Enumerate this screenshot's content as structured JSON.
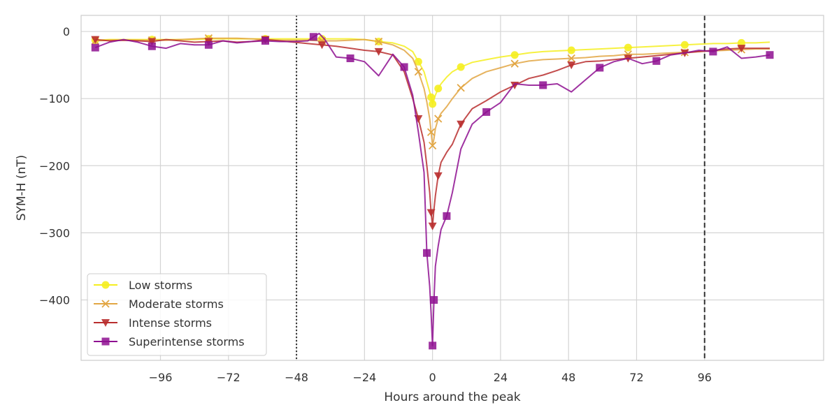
{
  "chart_data": {
    "type": "line",
    "title": "",
    "xlabel": "Hours around the peak",
    "ylabel": "SYM-H (nT)",
    "xlim": [
      -124,
      138
    ],
    "ylim": [
      -490,
      24
    ],
    "xticks": [
      -96,
      -72,
      -48,
      -24,
      0,
      24,
      48,
      72,
      96
    ],
    "yticks": [
      0,
      -100,
      -200,
      -300,
      -400
    ],
    "grid": true,
    "legend_position": "lower-left",
    "vlines": [
      {
        "x": -48,
        "style": "dotted",
        "color": "#333333"
      },
      {
        "x": 96,
        "style": "dashed",
        "color": "#333333"
      }
    ],
    "series": [
      {
        "name": "Low storms",
        "color": "#f5ee1f",
        "marker": "circle",
        "x": [
          -119,
          -114,
          -109,
          -104,
          -99,
          -94,
          -89,
          -84,
          -79,
          -74,
          -69,
          -64,
          -59,
          -54,
          -49,
          -44,
          -39,
          -34,
          -29,
          -24,
          -19,
          -14,
          -10,
          -7,
          -5,
          -3,
          -2,
          -1,
          -0.5,
          0,
          0.5,
          1,
          2,
          3,
          5,
          7,
          10,
          14,
          19,
          24,
          29,
          34,
          39,
          44,
          49,
          54,
          59,
          64,
          69,
          74,
          79,
          84,
          89,
          94,
          99,
          104,
          109,
          114,
          119
        ],
        "y": [
          -13,
          -12,
          -12,
          -12,
          -12,
          -12,
          -12,
          -12,
          -11,
          -11,
          -11,
          -11,
          -11,
          -11,
          -11,
          -11,
          -11,
          -11,
          -11,
          -12,
          -15,
          -17,
          -22,
          -30,
          -45,
          -60,
          -75,
          -90,
          -98,
          -108,
          -102,
          -95,
          -85,
          -78,
          -68,
          -60,
          -53,
          -46,
          -42,
          -38,
          -35,
          -32,
          -30,
          -29,
          -28,
          -27,
          -26,
          -25,
          -24,
          -23,
          -22,
          -21,
          -20,
          -19,
          -18,
          -18,
          -17,
          -17,
          -16
        ]
      },
      {
        "name": "Moderate storms",
        "color": "#e2a643",
        "marker": "x",
        "x": [
          -119,
          -114,
          -109,
          -104,
          -99,
          -94,
          -89,
          -84,
          -79,
          -74,
          -69,
          -64,
          -59,
          -54,
          -49,
          -44,
          -39,
          -34,
          -29,
          -24,
          -19,
          -14,
          -10,
          -7,
          -5,
          -3,
          -2,
          -1,
          -0.5,
          0,
          0.5,
          1,
          2,
          3,
          5,
          7,
          10,
          14,
          19,
          24,
          29,
          34,
          39,
          44,
          49,
          54,
          59,
          64,
          69,
          74,
          79,
          84,
          89,
          94,
          99,
          104,
          109,
          114,
          119
        ],
        "y": [
          -14,
          -13,
          -13,
          -13,
          -13,
          -13,
          -12,
          -11,
          -10,
          -10,
          -10,
          -11,
          -12,
          -13,
          -13,
          -13,
          -14,
          -14,
          -13,
          -12,
          -15,
          -20,
          -28,
          -40,
          -60,
          -85,
          -105,
          -130,
          -150,
          -170,
          -160,
          -145,
          -130,
          -122,
          -112,
          -100,
          -84,
          -70,
          -60,
          -54,
          -48,
          -44,
          -42,
          -41,
          -40,
          -39,
          -37,
          -36,
          -34,
          -34,
          -33,
          -32,
          -31,
          -30,
          -29,
          -28,
          -27,
          -26,
          -26
        ]
      },
      {
        "name": "Intense storms",
        "color": "#b92e2e",
        "marker": "triangle-down",
        "x": [
          -119,
          -114,
          -109,
          -104,
          -99,
          -94,
          -89,
          -84,
          -79,
          -74,
          -69,
          -64,
          -59,
          -54,
          -49,
          -44,
          -39,
          -34,
          -29,
          -24,
          -19,
          -14,
          -10,
          -7,
          -5,
          -3,
          -2,
          -1,
          -0.5,
          0,
          0.5,
          1,
          2,
          3,
          5,
          7,
          10,
          14,
          19,
          24,
          29,
          34,
          39,
          44,
          49,
          54,
          59,
          64,
          69,
          74,
          79,
          84,
          89,
          94,
          99,
          104,
          109,
          114,
          119
        ],
        "y": [
          -12,
          -14,
          -13,
          -14,
          -15,
          -12,
          -14,
          -16,
          -15,
          -14,
          -16,
          -15,
          -12,
          -14,
          -16,
          -18,
          -20,
          -22,
          -25,
          -28,
          -30,
          -35,
          -60,
          -100,
          -130,
          -165,
          -200,
          -240,
          -270,
          -290,
          -265,
          -245,
          -215,
          -195,
          -180,
          -168,
          -138,
          -115,
          -103,
          -90,
          -80,
          -70,
          -65,
          -58,
          -50,
          -45,
          -44,
          -42,
          -40,
          -38,
          -36,
          -34,
          -32,
          -30,
          -28,
          -26,
          -25,
          -25,
          -25
        ]
      },
      {
        "name": "Superintense storms",
        "color": "#8e0f91",
        "marker": "square",
        "x": [
          -119,
          -114,
          -109,
          -104,
          -99,
          -94,
          -89,
          -84,
          -79,
          -74,
          -69,
          -64,
          -59,
          -54,
          -49,
          -44,
          -42,
          -40,
          -38,
          -34,
          -29,
          -24,
          -19,
          -14,
          -10,
          -7,
          -5,
          -3,
          -2,
          -1,
          -0.5,
          0,
          0.5,
          1,
          2,
          3,
          5,
          7,
          10,
          14,
          19,
          24,
          29,
          34,
          39,
          44,
          49,
          54,
          59,
          64,
          69,
          74,
          79,
          84,
          89,
          94,
          99,
          104,
          109,
          114,
          119
        ],
        "y": [
          -24,
          -16,
          -12,
          -16,
          -22,
          -25,
          -18,
          -20,
          -20,
          -14,
          -17,
          -15,
          -14,
          -15,
          -15,
          -14,
          -8,
          -3,
          -12,
          -38,
          -40,
          -45,
          -66,
          -34,
          -53,
          -95,
          -150,
          -210,
          -330,
          -380,
          -420,
          -468,
          -400,
          -350,
          -320,
          -295,
          -275,
          -240,
          -175,
          -138,
          -120,
          -106,
          -78,
          -80,
          -80,
          -78,
          -90,
          -72,
          -54,
          -45,
          -40,
          -48,
          -44,
          -35,
          -32,
          -28,
          -30,
          -23,
          -40,
          -38,
          -35
        ]
      }
    ]
  }
}
